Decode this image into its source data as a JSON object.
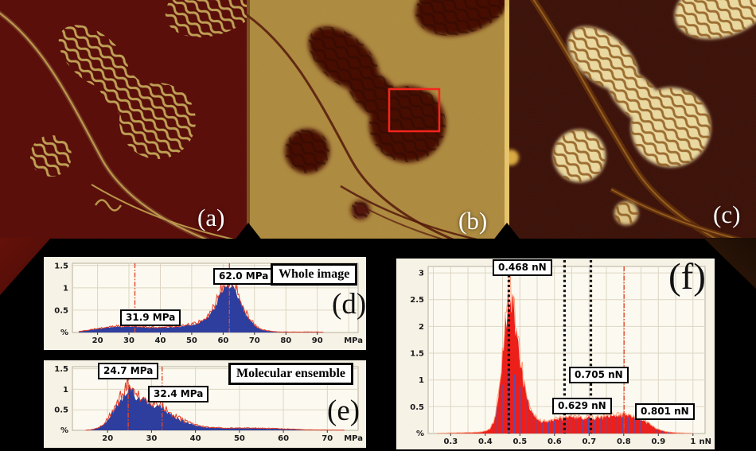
{
  "figure_background": "#000000",
  "images": {
    "a": {
      "label": "(a)",
      "description": "afm-image-dark-with-gold-labyrinth",
      "bg_color": "#6e130c",
      "pattern_color": "#e4c066"
    },
    "b": {
      "label": "(b)",
      "description": "afm-image-gold-with-dark-domains",
      "bg_color": "#d4ab50",
      "blob_color": "#470d05",
      "roi_box_color": "#f5251c"
    },
    "c": {
      "label": "(c)",
      "description": "afm-image-black-with-cream-domains",
      "bg_color": "#190c05",
      "blob_color": "#e9d8a0"
    }
  },
  "chart_data": [
    {
      "id": "d",
      "type": "histogram",
      "panel_letter": "(d)",
      "title": "Whole image",
      "x_unit": "MPa",
      "y_unit": "%",
      "x_ticks": [
        "20",
        "30",
        "40",
        "50",
        "60",
        "70",
        "80",
        "90"
      ],
      "y_ticks": [
        "0.5",
        "1",
        "1.5"
      ],
      "x_range": [
        12,
        103
      ],
      "y_range": [
        0,
        1.55
      ],
      "x_grid_start": 20,
      "x_grid_step": 10,
      "y_grid_step": 0.5,
      "fill_color": "#2e3e9e",
      "outline_color": "#e23b25",
      "noise_fill": 0.1,
      "noise_line": 0.3,
      "seed": 11,
      "markers": [
        {
          "value": 31.9,
          "label": "31.9 MPa",
          "style": "rd"
        },
        {
          "value": 62.0,
          "label": "62.0 MPa",
          "style": "rd"
        }
      ],
      "envelope": [
        [
          14,
          0.02
        ],
        [
          16,
          0.04
        ],
        [
          18,
          0.06
        ],
        [
          20,
          0.08
        ],
        [
          22,
          0.1
        ],
        [
          24,
          0.12
        ],
        [
          26,
          0.13
        ],
        [
          28,
          0.13
        ],
        [
          30,
          0.13
        ],
        [
          32,
          0.13
        ],
        [
          34,
          0.12
        ],
        [
          36,
          0.11
        ],
        [
          38,
          0.11
        ],
        [
          40,
          0.11
        ],
        [
          42,
          0.12
        ],
        [
          44,
          0.12
        ],
        [
          46,
          0.13
        ],
        [
          48,
          0.15
        ],
        [
          50,
          0.17
        ],
        [
          52,
          0.21
        ],
        [
          54,
          0.28
        ],
        [
          56,
          0.42
        ],
        [
          57,
          0.52
        ],
        [
          58,
          0.66
        ],
        [
          59,
          0.82
        ],
        [
          60,
          0.95
        ],
        [
          61,
          1.04
        ],
        [
          62,
          1.1
        ],
        [
          63,
          1.04
        ],
        [
          64,
          0.93
        ],
        [
          65,
          0.78
        ],
        [
          66,
          0.6
        ],
        [
          67,
          0.46
        ],
        [
          68,
          0.33
        ],
        [
          69,
          0.24
        ],
        [
          70,
          0.17
        ],
        [
          71,
          0.11
        ],
        [
          72,
          0.07
        ],
        [
          74,
          0.04
        ],
        [
          76,
          0.02
        ],
        [
          78,
          0.01
        ],
        [
          82,
          0.01
        ],
        [
          86,
          0.01
        ],
        [
          90,
          0.01
        ],
        [
          92,
          0.005
        ]
      ]
    },
    {
      "id": "e",
      "type": "histogram",
      "panel_letter": "(e)",
      "title": "Molecular ensemble",
      "x_unit": "MPa",
      "y_unit": "%",
      "x_ticks": [
        "20",
        "30",
        "40",
        "50",
        "60",
        "70"
      ],
      "y_ticks": [
        "0.5",
        "1",
        "1.5"
      ],
      "x_range": [
        12,
        77
      ],
      "y_range": [
        0,
        1.55
      ],
      "x_grid_start": 20,
      "x_grid_step": 10,
      "y_grid_step": 0.5,
      "fill_color": "#2e3e9e",
      "outline_color": "#e23b25",
      "noise_fill": 0.14,
      "noise_line": 0.38,
      "seed": 22,
      "markers": [
        {
          "value": 24.7,
          "label": "24.7 MPa",
          "style": "rd"
        },
        {
          "value": 32.4,
          "label": "32.4 MPa",
          "style": "rd"
        }
      ],
      "envelope": [
        [
          15,
          0.005
        ],
        [
          16,
          0.01
        ],
        [
          17,
          0.03
        ],
        [
          18,
          0.07
        ],
        [
          19,
          0.14
        ],
        [
          20,
          0.26
        ],
        [
          21,
          0.42
        ],
        [
          22,
          0.58
        ],
        [
          23,
          0.76
        ],
        [
          24,
          0.92
        ],
        [
          24.7,
          1.02
        ],
        [
          25.3,
          0.96
        ],
        [
          26,
          0.88
        ],
        [
          27,
          0.8
        ],
        [
          27.7,
          0.76
        ],
        [
          28.5,
          0.7
        ],
        [
          29.5,
          0.63
        ],
        [
          30.5,
          0.57
        ],
        [
          31.3,
          0.55
        ],
        [
          32,
          0.58
        ],
        [
          32.4,
          0.6
        ],
        [
          33,
          0.52
        ],
        [
          33.8,
          0.44
        ],
        [
          34.6,
          0.38
        ],
        [
          35.5,
          0.32
        ],
        [
          36.5,
          0.26
        ],
        [
          37.5,
          0.21
        ],
        [
          38.5,
          0.17
        ],
        [
          40,
          0.12
        ],
        [
          41.5,
          0.09
        ],
        [
          43,
          0.07
        ],
        [
          45,
          0.06
        ],
        [
          47,
          0.05
        ],
        [
          49,
          0.05
        ],
        [
          51,
          0.05
        ],
        [
          53,
          0.05
        ],
        [
          55,
          0.045
        ],
        [
          57,
          0.04
        ],
        [
          59,
          0.035
        ],
        [
          61,
          0.03
        ],
        [
          63,
          0.02
        ],
        [
          65,
          0.012
        ],
        [
          68,
          0.008
        ],
        [
          71,
          0.006
        ],
        [
          74,
          0.005
        ]
      ]
    },
    {
      "id": "f",
      "type": "histogram",
      "panel_letter": "(f)",
      "title": "",
      "x_unit": "nN",
      "y_unit": "%",
      "x_ticks": [
        "0.3",
        "0.4",
        "0.5",
        "0.6",
        "0.7",
        "0.8",
        "0.9",
        "1"
      ],
      "y_ticks": [
        "0.5",
        "1",
        "1.5",
        "2",
        "2.5",
        "3"
      ],
      "x_range": [
        0.235,
        1.035
      ],
      "y_range": [
        0,
        3.12
      ],
      "x_grid_start": 0.25,
      "x_grid_step": 0.05,
      "y_grid_step": 0.5,
      "fill_color": "#ed1f1a",
      "outline_color": "#ff9b78",
      "noise_fill": 0.13,
      "noise_line": 0.2,
      "seed": 33,
      "comb": {
        "from": 0.418,
        "to": 0.955,
        "step": 0.0165,
        "color": "#5252bc"
      },
      "markers": [
        {
          "value": 0.468,
          "label": "0.468 nN",
          "style": "bk"
        },
        {
          "value": 0.629,
          "label": "0.629 nN",
          "style": "bk"
        },
        {
          "value": 0.705,
          "label": "0.705 nN",
          "style": "bk"
        },
        {
          "value": 0.801,
          "label": "0.801 nN",
          "style": "rd"
        }
      ],
      "envelope": [
        [
          0.26,
          0.005
        ],
        [
          0.3,
          0.01
        ],
        [
          0.34,
          0.015
        ],
        [
          0.37,
          0.02
        ],
        [
          0.39,
          0.03
        ],
        [
          0.405,
          0.05
        ],
        [
          0.415,
          0.1
        ],
        [
          0.425,
          0.22
        ],
        [
          0.432,
          0.42
        ],
        [
          0.44,
          0.8
        ],
        [
          0.448,
          1.3
        ],
        [
          0.455,
          1.85
        ],
        [
          0.462,
          2.25
        ],
        [
          0.468,
          2.55
        ],
        [
          0.475,
          2.48
        ],
        [
          0.482,
          2.25
        ],
        [
          0.49,
          1.92
        ],
        [
          0.497,
          1.55
        ],
        [
          0.505,
          1.2
        ],
        [
          0.512,
          0.92
        ],
        [
          0.52,
          0.68
        ],
        [
          0.528,
          0.5
        ],
        [
          0.536,
          0.38
        ],
        [
          0.545,
          0.3
        ],
        [
          0.555,
          0.24
        ],
        [
          0.565,
          0.22
        ],
        [
          0.58,
          0.23
        ],
        [
          0.6,
          0.26
        ],
        [
          0.62,
          0.28
        ],
        [
          0.64,
          0.3
        ],
        [
          0.655,
          0.3
        ],
        [
          0.67,
          0.29
        ],
        [
          0.685,
          0.28
        ],
        [
          0.7,
          0.3
        ],
        [
          0.715,
          0.28
        ],
        [
          0.73,
          0.3
        ],
        [
          0.745,
          0.32
        ],
        [
          0.76,
          0.33
        ],
        [
          0.775,
          0.34
        ],
        [
          0.79,
          0.34
        ],
        [
          0.805,
          0.34
        ],
        [
          0.82,
          0.32
        ],
        [
          0.835,
          0.3
        ],
        [
          0.85,
          0.26
        ],
        [
          0.865,
          0.21
        ],
        [
          0.88,
          0.15
        ],
        [
          0.895,
          0.09
        ],
        [
          0.91,
          0.05
        ],
        [
          0.93,
          0.025
        ],
        [
          0.95,
          0.015
        ],
        [
          0.97,
          0.01
        ],
        [
          1.0,
          0.005
        ]
      ]
    }
  ]
}
